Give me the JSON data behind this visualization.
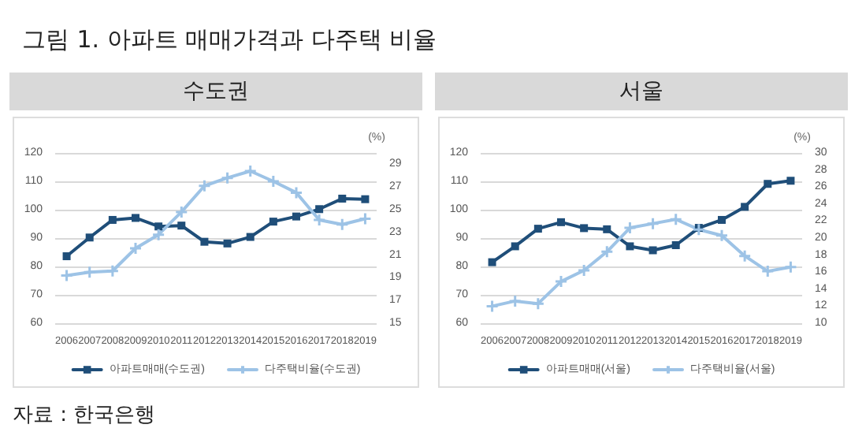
{
  "chart_data": [
    {
      "type": "line",
      "title": "수도권",
      "annotations": [
        "그림 1. 아파트 매매가격과 다주택 비율",
        "자료 : 한국은행"
      ],
      "y2label": "(%)",
      "categories": [
        "2006",
        "2007",
        "2008",
        "2009",
        "2010",
        "2011",
        "2012",
        "2013",
        "2014",
        "2015",
        "2016",
        "2017",
        "2018",
        "2019"
      ],
      "series": [
        {
          "name": "아파트매매(수도권)",
          "color": "#1f4e79",
          "marker": "square",
          "values": [
            83.6,
            90.2,
            96.4,
            97.1,
            94.1,
            94.4,
            88.7,
            88.1,
            90.4,
            95.8,
            97.6,
            100.2,
            103.9,
            103.7
          ]
        },
        {
          "name": "다주택비율(수도권)",
          "color": "#9dc3e6",
          "marker": "cross",
          "axis": "y2",
          "values": [
            19.2,
            19.5,
            19.6,
            21.6,
            22.8,
            24.8,
            27.1,
            27.8,
            28.4,
            27.5,
            26.5,
            24.1,
            23.7,
            24.2
          ]
        }
      ],
      "ylim": [
        60,
        120
      ],
      "yticks": [
        60,
        70,
        80,
        90,
        100,
        110,
        120
      ],
      "y2lim": [
        15,
        30
      ],
      "y2ticks": [
        15,
        17,
        19,
        21,
        23,
        25,
        27,
        29
      ],
      "grid": "y",
      "legend": "bottom",
      "line_style": "solid"
    },
    {
      "type": "line",
      "title": "서울",
      "y2label": "(%)",
      "categories": [
        "2006",
        "2007",
        "2008",
        "2009",
        "2010",
        "2011",
        "2012",
        "2013",
        "2014",
        "2015",
        "2016",
        "2017",
        "2018",
        "2019"
      ],
      "series": [
        {
          "name": "아파트매매(서울)",
          "color": "#1f4e79",
          "marker": "square",
          "values": [
            81.5,
            87.1,
            93.3,
            95.6,
            93.5,
            93.1,
            87.1,
            85.7,
            87.5,
            93.6,
            96.4,
            101.0,
            109.1,
            110.2
          ]
        },
        {
          "name": "다주택비율(서울)",
          "color": "#9dc3e6",
          "marker": "cross",
          "axis": "y2",
          "values": [
            12.0,
            12.6,
            12.3,
            14.9,
            16.2,
            18.4,
            21.2,
            21.7,
            22.2,
            21.0,
            20.3,
            17.9,
            16.1,
            16.6
          ]
        }
      ],
      "ylim": [
        60,
        120
      ],
      "yticks": [
        60,
        70,
        80,
        90,
        100,
        110,
        120
      ],
      "y2lim": [
        10,
        30
      ],
      "y2ticks": [
        10,
        12,
        14,
        16,
        18,
        20,
        22,
        24,
        26,
        28,
        30
      ],
      "grid": "y",
      "legend": "bottom",
      "line_style": "solid"
    }
  ]
}
